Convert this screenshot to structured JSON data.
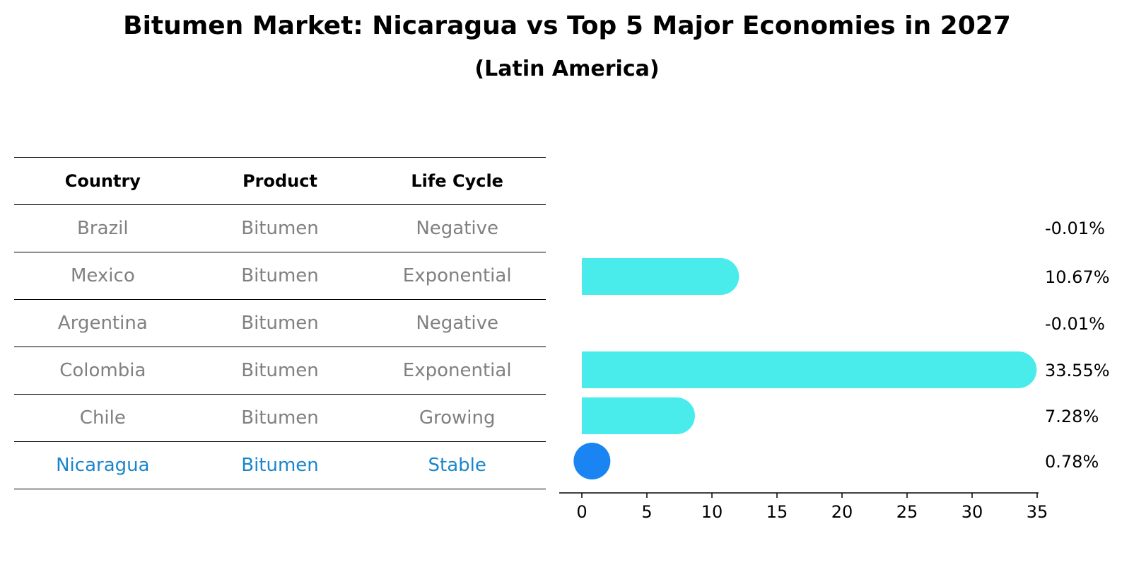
{
  "title": "Bitumen Market: Nicaragua vs Top 5 Major Economies in 2027",
  "subtitle": "(Latin America)",
  "table": {
    "headers": [
      "Country",
      "Product",
      "Life Cycle"
    ],
    "rows": [
      [
        "Brazil",
        "Bitumen",
        "Negative"
      ],
      [
        "Mexico",
        "Bitumen",
        "Exponential"
      ],
      [
        "Argentina",
        "Bitumen",
        "Negative"
      ],
      [
        "Colombia",
        "Bitumen",
        "Exponential"
      ],
      [
        "Chile",
        "Bitumen",
        "Growing"
      ],
      [
        "Nicaragua",
        "Bitumen",
        "Stable"
      ]
    ],
    "highlight_row": 5
  },
  "chart_data": {
    "type": "bar",
    "orientation": "horizontal",
    "title": "Bitumen Market: Nicaragua vs Top 5 Major Economies in 2027",
    "subtitle": "(Latin America)",
    "categories": [
      "Brazil",
      "Mexico",
      "Argentina",
      "Colombia",
      "Chile",
      "Nicaragua"
    ],
    "values": [
      -0.01,
      10.67,
      -0.01,
      33.55,
      7.28,
      0.78
    ],
    "value_labels": [
      "-0.01%",
      "10.67%",
      "-0.01%",
      "33.55%",
      "7.28%",
      "0.78%"
    ],
    "xlim": [
      0,
      35
    ],
    "xticks": [
      "0",
      "5",
      "10",
      "15",
      "20",
      "25",
      "30",
      "35"
    ],
    "xlabel": "",
    "ylabel": "",
    "grid": false,
    "colors": {
      "bar": "#4aebeb",
      "highlight": "#1a85f2"
    },
    "highlight_index": 5
  }
}
